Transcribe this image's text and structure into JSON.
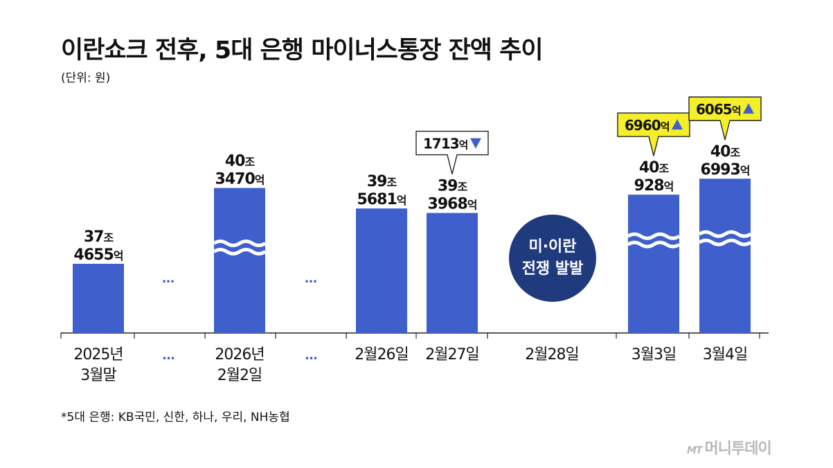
{
  "title": "이란쇼크 전후, 5대 은행 마이너스통장 잔액 추이",
  "unit_note": "(단위: 원)",
  "footnote": "*5대 은행: KB국민, 신한, 하나, 우리, NH농협",
  "logo": {
    "mark": "MT",
    "text": "머니투데이"
  },
  "event_circle": {
    "line1": "미·이란",
    "line2": "전쟁 발발"
  },
  "colors": {
    "bar": "#3f5fcc",
    "callout_yellow": "#f5ee2a",
    "arrow": "#3f5fcc",
    "circle": "#1f3a7d"
  },
  "chart_data": {
    "type": "bar",
    "unit": "원",
    "axis_break": true,
    "categories": [
      "2025년 3월말",
      "…",
      "2026년 2월2일",
      "…",
      "2월26일",
      "2월27일",
      "2월28일",
      "3월3일",
      "3월4일"
    ],
    "x_labels": [
      [
        "2025년",
        "3월말"
      ],
      [
        "…"
      ],
      [
        "2026년",
        "2월2일"
      ],
      [
        "…"
      ],
      [
        "2월26일"
      ],
      [
        "2월27일"
      ],
      [
        "2월28일"
      ],
      [
        "3월3일"
      ],
      [
        "3월4일"
      ]
    ],
    "values_eok": [
      374655,
      null,
      403470,
      null,
      395681,
      393968,
      null,
      400928,
      406993
    ],
    "value_labels": [
      {
        "jo": "37",
        "jo_unit": "조",
        "eok": "4655",
        "eok_unit": "억"
      },
      null,
      {
        "jo": "40",
        "jo_unit": "조",
        "eok": "3470",
        "eok_unit": "억"
      },
      null,
      {
        "jo": "39",
        "jo_unit": "조",
        "eok": "5681",
        "eok_unit": "억"
      },
      {
        "jo": "39",
        "jo_unit": "조",
        "eok": "3968",
        "eok_unit": "억"
      },
      null,
      {
        "jo": "40",
        "jo_unit": "조",
        "eok": "928",
        "eok_unit": "억"
      },
      {
        "jo": "40",
        "jo_unit": "조",
        "eok": "6993",
        "eok_unit": "억"
      }
    ],
    "changes": [
      {
        "index": 5,
        "amount": "1713",
        "unit": "억",
        "direction": "down",
        "style": "white"
      },
      {
        "index": 7,
        "amount": "6960",
        "unit": "억",
        "direction": "up",
        "style": "yellow"
      },
      {
        "index": 8,
        "amount": "6065",
        "unit": "억",
        "direction": "up",
        "style": "yellow"
      }
    ]
  }
}
